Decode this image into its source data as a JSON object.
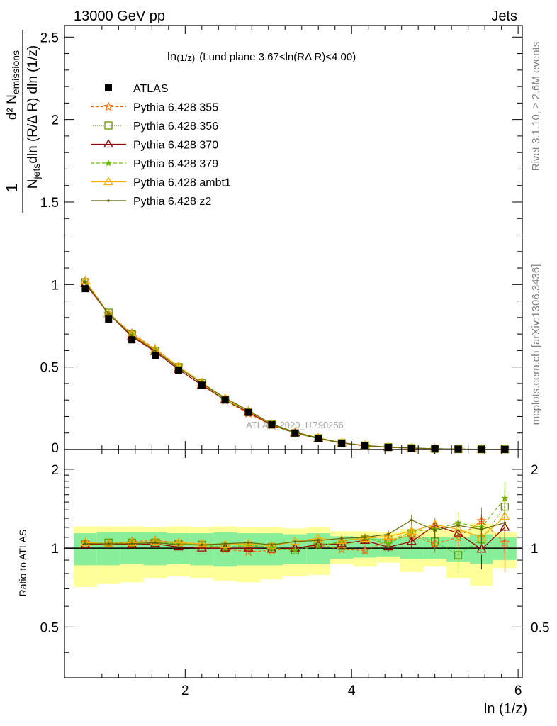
{
  "header": {
    "left_title": "13000 GeV pp",
    "right_title": "Jets"
  },
  "side_labels": {
    "rivet": "Rivet 3.1.10, ≥ 2.6M events",
    "mcplots": "mcplots.cern.ch [arXiv:1306.3436]"
  },
  "main_plot": {
    "title_prefix": "ln",
    "title_sub": "(1/z)",
    "title_rest": "(Lund plane 3.67<ln(RΔ R)<4.00)",
    "ylabel_numerator": "d² N",
    "ylabel_numerator_sub": "emissions",
    "ylabel_denominator": "dln (R/Δ R) dln (1/z)",
    "ylabel_denominator_prefix": "N",
    "ylabel_denominator_sub": "jets",
    "ylabel_one": "1",
    "watermark": "ATLAS_2020_I1790256",
    "yticks": [
      {
        "value": 0.5,
        "label": "0.5"
      },
      {
        "value": 1,
        "label": "1"
      },
      {
        "value": 1.5,
        "label": "1.5"
      },
      {
        "value": 2,
        "label": "2"
      },
      {
        "value": 2.5,
        "label": "2.5"
      },
      {
        "value": 0,
        "label": "0"
      }
    ]
  },
  "ratio_plot": {
    "ylabel": "Ratio to ATLAS",
    "yticks": [
      {
        "value": 0.5,
        "label": "0.5"
      },
      {
        "value": 1,
        "label": "1"
      },
      {
        "value": 2,
        "label": "2"
      }
    ]
  },
  "x_axis": {
    "label": "ln (1/z)",
    "ticks": [
      {
        "value": 2,
        "label": "2"
      },
      {
        "value": 4,
        "label": "4"
      },
      {
        "value": 6,
        "label": "6"
      }
    ]
  },
  "legend": [
    {
      "name": "ATLAS",
      "color": "#000000",
      "marker": "square-filled",
      "dash": ""
    },
    {
      "name": "Pythia 6.428 355",
      "color": "#ff6600",
      "marker": "star",
      "dash": "4,3"
    },
    {
      "name": "Pythia 6.428 356",
      "color": "#669900",
      "marker": "square-open",
      "dash": "1,2"
    },
    {
      "name": "Pythia 6.428 370",
      "color": "#990000",
      "marker": "triangle-open",
      "dash": ""
    },
    {
      "name": "Pythia 6.428 379",
      "color": "#66bb00",
      "marker": "star-small",
      "dash": "5,3"
    },
    {
      "name": "Pythia 6.428 ambt1",
      "color": "#ffaa00",
      "marker": "triangle-open",
      "dash": ""
    },
    {
      "name": "Pythia 6.428 z2",
      "color": "#666600",
      "marker": "dot",
      "dash": ""
    }
  ],
  "chart_data": {
    "type": "line",
    "title": "ln(1/z) (Lund plane 3.67<ln(RΔ R)<4.00)",
    "xlabel": "ln (1/z)",
    "ylabel": "1/N_jets d²N_emissions / dln(R/ΔR) dln(1/z)",
    "xlim": [
      0.55,
      6.05
    ],
    "ylim": [
      0,
      2.57
    ],
    "ratio_ylim": [
      0.32,
      2.38
    ],
    "x": [
      0.8,
      1.08,
      1.36,
      1.64,
      1.92,
      2.2,
      2.48,
      2.76,
      3.04,
      3.32,
      3.6,
      3.88,
      4.16,
      4.44,
      4.72,
      5.0,
      5.28,
      5.56,
      5.84
    ],
    "bin_edges": [
      0.66,
      0.94,
      1.22,
      1.5,
      1.78,
      2.06,
      2.34,
      2.62,
      2.9,
      3.18,
      3.46,
      3.74,
      4.02,
      4.3,
      4.58,
      4.86,
      5.14,
      5.42,
      5.7,
      5.98
    ],
    "data": {
      "name": "ATLAS",
      "values": [
        0.975,
        0.79,
        0.665,
        0.57,
        0.48,
        0.39,
        0.3,
        0.225,
        0.15,
        0.1,
        0.065,
        0.038,
        0.022,
        0.013,
        0.007,
        0.004,
        0.002,
        0.0012,
        0.0007
      ],
      "band_inner": [
        [
          0.86,
          1.14
        ],
        [
          0.86,
          1.15
        ],
        [
          0.87,
          1.15
        ],
        [
          0.86,
          1.15
        ],
        [
          0.87,
          1.14
        ],
        [
          0.86,
          1.14
        ],
        [
          0.85,
          1.15
        ],
        [
          0.86,
          1.14
        ],
        [
          0.86,
          1.14
        ],
        [
          0.87,
          1.13
        ],
        [
          0.87,
          1.14
        ],
        [
          0.91,
          1.11
        ],
        [
          0.92,
          1.1
        ],
        [
          0.93,
          1.09
        ],
        [
          0.91,
          1.1
        ],
        [
          0.91,
          1.1
        ],
        [
          0.89,
          1.1
        ],
        [
          0.87,
          1.13
        ],
        [
          0.9,
          1.1
        ]
      ],
      "band_outer": [
        [
          0.71,
          1.21
        ],
        [
          0.73,
          1.21
        ],
        [
          0.74,
          1.21
        ],
        [
          0.77,
          1.2
        ],
        [
          0.78,
          1.21
        ],
        [
          0.77,
          1.2
        ],
        [
          0.75,
          1.21
        ],
        [
          0.74,
          1.2
        ],
        [
          0.76,
          1.2
        ],
        [
          0.78,
          1.19
        ],
        [
          0.79,
          1.2
        ],
        [
          0.87,
          1.16
        ],
        [
          0.85,
          1.16
        ],
        [
          0.88,
          1.15
        ],
        [
          0.81,
          1.18
        ],
        [
          0.85,
          1.17
        ],
        [
          0.77,
          1.18
        ],
        [
          0.72,
          1.24
        ],
        [
          0.84,
          1.15
        ]
      ]
    },
    "series": [
      {
        "name": "Pythia 6.428 355",
        "ratio": [
          1.05,
          1.04,
          1.06,
          1.07,
          1.05,
          1.02,
          0.99,
          0.97,
          0.98,
          1.0,
          1.03,
          0.99,
          0.98,
          1.07,
          1.12,
          1.04,
          1.1,
          1.27,
          1.05
        ]
      },
      {
        "name": "Pythia 6.428 356",
        "ratio": [
          1.04,
          1.05,
          1.05,
          1.05,
          1.04,
          1.03,
          1.01,
          1.02,
          1.01,
          0.98,
          1.05,
          1.02,
          1.08,
          1.08,
          1.14,
          1.06,
          0.94,
          1.08,
          1.44
        ]
      },
      {
        "name": "Pythia 6.428 370",
        "ratio": [
          1.03,
          1.04,
          1.03,
          1.04,
          1.01,
          1.0,
          1.0,
          1.0,
          0.99,
          1.0,
          1.03,
          1.04,
          1.07,
          1.01,
          1.06,
          1.22,
          1.14,
          0.99,
          1.2
        ]
      },
      {
        "name": "Pythia 6.428 379",
        "ratio": [
          1.04,
          1.04,
          1.05,
          1.06,
          1.04,
          1.03,
          1.0,
          1.03,
          1.0,
          0.98,
          1.02,
          1.06,
          1.1,
          1.04,
          1.16,
          1.18,
          1.25,
          1.2,
          1.55
        ]
      },
      {
        "name": "Pythia 6.428 ambt1",
        "ratio": [
          1.05,
          1.04,
          1.05,
          1.06,
          1.05,
          1.04,
          1.03,
          1.04,
          1.02,
          1.06,
          1.09,
          1.07,
          1.09,
          1.11,
          1.16,
          1.23,
          1.18,
          1.1,
          1.32
        ]
      },
      {
        "name": "Pythia 6.428 z2",
        "ratio": [
          1.04,
          1.04,
          1.04,
          1.05,
          1.03,
          1.03,
          1.04,
          1.05,
          1.03,
          1.06,
          1.07,
          1.09,
          1.1,
          1.13,
          1.28,
          1.17,
          1.22,
          1.18,
          1.25
        ]
      }
    ],
    "ratio_errors": [
      0.01,
      0.01,
      0.01,
      0.01,
      0.01,
      0.01,
      0.01,
      0.01,
      0.01,
      0.01,
      0.02,
      0.02,
      0.03,
      0.04,
      0.06,
      0.08,
      0.12,
      0.16,
      0.24
    ],
    "grid": false,
    "legend_position": "top-left"
  }
}
